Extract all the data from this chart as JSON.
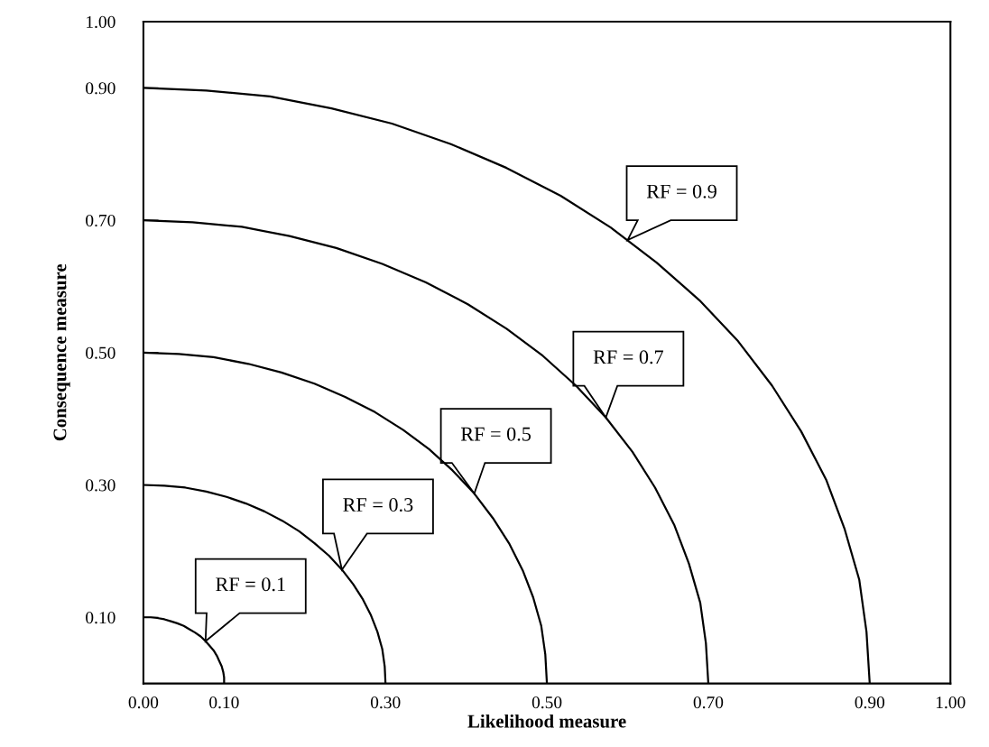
{
  "chart_data": {
    "type": "line",
    "xlabel": "Likelihood measure",
    "ylabel": "Consequence measure",
    "xlim": [
      0,
      1
    ],
    "ylim": [
      0,
      1
    ],
    "xticks": [
      {
        "value": 0,
        "label": "0.00"
      },
      {
        "value": 0.1,
        "label": "0.10"
      },
      {
        "value": 0.3,
        "label": "0.30"
      },
      {
        "value": 0.5,
        "label": "0.50"
      },
      {
        "value": 0.7,
        "label": "0.70"
      },
      {
        "value": 0.9,
        "label": "0.90"
      },
      {
        "value": 1,
        "label": "1.00"
      }
    ],
    "yticks": [
      {
        "value": 0.1,
        "label": "0.10"
      },
      {
        "value": 0.3,
        "label": "0.30"
      },
      {
        "value": 0.5,
        "label": "0.50"
      },
      {
        "value": 0.7,
        "label": "0.70"
      },
      {
        "value": 0.9,
        "label": "0.90"
      },
      {
        "value": 1,
        "label": "1.00"
      }
    ],
    "grid": false,
    "legend": false,
    "marker": "none",
    "line_style": "solid",
    "series": [
      {
        "color": "#000000",
        "x": [
          0,
          0.009,
          0.017,
          0.026,
          0.034,
          0.042,
          0.05,
          0.057,
          0.064,
          0.071,
          0.077,
          0.082,
          0.087,
          0.091,
          0.094,
          0.097,
          0.099,
          0.1,
          0.1
        ],
        "values": [
          0.1,
          0.1,
          0.099,
          0.097,
          0.094,
          0.091,
          0.087,
          0.082,
          0.077,
          0.071,
          0.064,
          0.057,
          0.05,
          0.042,
          0.034,
          0.026,
          0.017,
          0.009,
          0
        ]
      },
      {
        "color": "#000000",
        "x": [
          0,
          0.026,
          0.052,
          0.078,
          0.103,
          0.127,
          0.15,
          0.172,
          0.193,
          0.212,
          0.23,
          0.246,
          0.26,
          0.272,
          0.282,
          0.29,
          0.296,
          0.299,
          0.3
        ],
        "values": [
          0.3,
          0.299,
          0.296,
          0.29,
          0.282,
          0.272,
          0.26,
          0.246,
          0.23,
          0.212,
          0.193,
          0.172,
          0.15,
          0.127,
          0.103,
          0.078,
          0.052,
          0.026,
          0
        ]
      },
      {
        "color": "#000000",
        "x": [
          0,
          0.044,
          0.087,
          0.13,
          0.171,
          0.212,
          0.25,
          0.287,
          0.322,
          0.354,
          0.383,
          0.41,
          0.433,
          0.453,
          0.47,
          0.483,
          0.493,
          0.498,
          0.5
        ],
        "values": [
          0.5,
          0.498,
          0.493,
          0.483,
          0.47,
          0.453,
          0.433,
          0.41,
          0.383,
          0.354,
          0.322,
          0.287,
          0.25,
          0.212,
          0.171,
          0.13,
          0.087,
          0.044,
          0
        ]
      },
      {
        "color": "#000000",
        "x": [
          0,
          0.061,
          0.122,
          0.181,
          0.239,
          0.296,
          0.35,
          0.402,
          0.45,
          0.495,
          0.536,
          0.573,
          0.606,
          0.634,
          0.658,
          0.676,
          0.69,
          0.697,
          0.7
        ],
        "values": [
          0.7,
          0.697,
          0.69,
          0.676,
          0.658,
          0.634,
          0.606,
          0.573,
          0.536,
          0.495,
          0.45,
          0.402,
          0.35,
          0.296,
          0.239,
          0.181,
          0.122,
          0.061,
          0
        ]
      },
      {
        "color": "#000000",
        "x": [
          0,
          0.078,
          0.157,
          0.233,
          0.308,
          0.381,
          0.45,
          0.517,
          0.579,
          0.636,
          0.689,
          0.737,
          0.779,
          0.815,
          0.846,
          0.869,
          0.887,
          0.896,
          0.9
        ],
        "values": [
          0.9,
          0.896,
          0.887,
          0.869,
          0.846,
          0.815,
          0.779,
          0.737,
          0.689,
          0.636,
          0.579,
          0.517,
          0.45,
          0.381,
          0.308,
          0.233,
          0.157,
          0.078,
          0
        ]
      }
    ],
    "annotations": [
      {
        "text": "RF = 0.1",
        "x": 0.077,
        "y": 0.064
      },
      {
        "text": "RF = 0.3",
        "x": 0.246,
        "y": 0.172
      },
      {
        "text": "RF = 0.5",
        "x": 0.41,
        "y": 0.287
      },
      {
        "text": "RF = 0.7",
        "x": 0.573,
        "y": 0.402
      },
      {
        "text": "RF = 0.9",
        "x": 0.6,
        "y": 0.67
      }
    ]
  }
}
